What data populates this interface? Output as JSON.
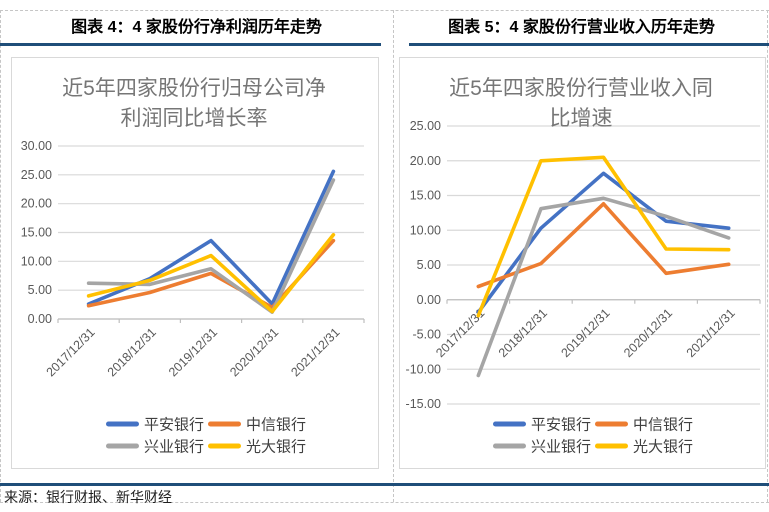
{
  "headers": {
    "left": "图表 4：4 家股份行净利润历年走势",
    "right": "图表 5：4 家股份行营业收入历年走势"
  },
  "source": "来源：银行财报、新华财经",
  "colors": {
    "header_rule": "#1F4E79",
    "frame_border": "#D9D9D9",
    "gridline": "#D9D9D9",
    "axis": "#BFBFBF",
    "chart_title_text": "#767676",
    "axis_label_text": "#595959",
    "legend_text": "#404040"
  },
  "chart_data": [
    {
      "type": "line",
      "title": "近5年四家股份行归母公司净利润同比增长率",
      "title_lines": [
        "近5年四家股份行归母公司净",
        "利润同比增长率"
      ],
      "categories": [
        "2017/12/31",
        "2018/12/31",
        "2019/12/31",
        "2020/12/31",
        "2021/12/31"
      ],
      "series": [
        {
          "name": "平安银行",
          "color": "#4472C4",
          "values": [
            2.6,
            7.0,
            13.6,
            2.6,
            25.6
          ]
        },
        {
          "name": "中信银行",
          "color": "#ED7D31",
          "values": [
            2.3,
            4.6,
            7.9,
            2.0,
            13.6
          ]
        },
        {
          "name": "兴业银行",
          "color": "#A5A5A5",
          "values": [
            6.2,
            6.0,
            8.7,
            1.2,
            24.1
          ]
        },
        {
          "name": "光大银行",
          "color": "#FFC000",
          "values": [
            4.0,
            6.7,
            11.0,
            1.3,
            14.6
          ]
        }
      ],
      "ylim": [
        0,
        30
      ],
      "ytick_step": 5,
      "ytick_labels": [
        "0.00",
        "5.00",
        "10.00",
        "15.00",
        "20.00",
        "25.00",
        "30.00"
      ],
      "grid": true,
      "legend_position": "bottom"
    },
    {
      "type": "line",
      "title": "近5年四家股份行营业收入同比增速",
      "title_lines": [
        "近5年四家股份行营业收入同",
        "比增速"
      ],
      "categories": [
        "2017/12/31",
        "2018/12/31",
        "2019/12/31",
        "2020/12/31",
        "2021/12/31"
      ],
      "series": [
        {
          "name": "平安银行",
          "color": "#4472C4",
          "values": [
            -1.8,
            10.3,
            18.2,
            11.3,
            10.3
          ]
        },
        {
          "name": "中信银行",
          "color": "#ED7D31",
          "values": [
            1.9,
            5.2,
            13.8,
            3.8,
            5.1
          ]
        },
        {
          "name": "兴业银行",
          "color": "#A5A5A5",
          "values": [
            -10.9,
            13.1,
            14.6,
            12.0,
            8.9
          ]
        },
        {
          "name": "光大银行",
          "color": "#FFC000",
          "values": [
            -2.3,
            20.0,
            20.5,
            7.3,
            7.2
          ]
        }
      ],
      "ylim": [
        -15,
        25
      ],
      "ytick_step": 5,
      "ytick_labels": [
        "-15.00",
        "-10.00",
        "-5.00",
        "0.00",
        "5.00",
        "10.00",
        "15.00",
        "20.00",
        "25.00"
      ],
      "grid": true,
      "legend_position": "bottom"
    }
  ]
}
